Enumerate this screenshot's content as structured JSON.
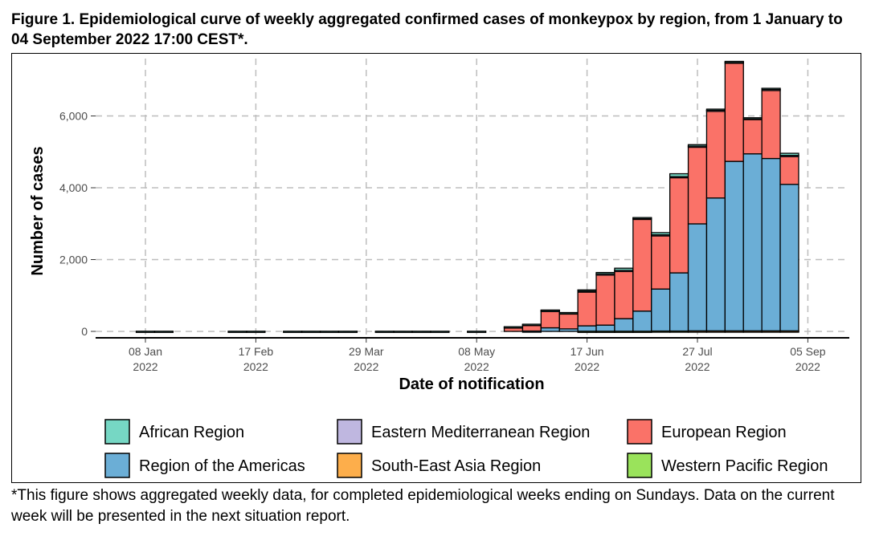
{
  "caption": "Figure 1. Epidemiological curve of weekly aggregated confirmed cases of monkeypox by region, from 1 January to 04 September 2022 17:00 CEST*.",
  "footnote": "*This figure shows aggregated weekly data, for completed epidemiological weeks ending on Sundays. Data on the current week will be presented in the next situation report.",
  "chart_data": {
    "type": "bar",
    "stacked": true,
    "xlabel": "Date of notification",
    "ylabel": "Number of cases",
    "ylim": [
      0,
      7500
    ],
    "yticks": [
      0,
      2000,
      4000,
      6000
    ],
    "ytick_labels": [
      "0",
      "2,000",
      "4,000",
      "6,000"
    ],
    "grid": true,
    "legend_position": "bottom",
    "x_tick_labels": [
      {
        "week": 0,
        "line1": "08 Jan",
        "line2": "2022"
      },
      {
        "week": 6,
        "line1": "17 Feb",
        "line2": "2022"
      },
      {
        "week": 12,
        "line1": "29 Mar",
        "line2": "2022"
      },
      {
        "week": 18,
        "line1": "08 May",
        "line2": "2022"
      },
      {
        "week": 24,
        "line1": "17 Jun",
        "line2": "2022"
      },
      {
        "week": 30,
        "line1": "27 Jul",
        "line2": "2022"
      },
      {
        "week": 36,
        "line1": "05 Sep",
        "line2": "2022"
      }
    ],
    "weeks": [
      "2022-01-02",
      "2022-01-09",
      "2022-01-16",
      "2022-01-23",
      "2022-01-30",
      "2022-02-06",
      "2022-02-13",
      "2022-02-20",
      "2022-02-27",
      "2022-03-06",
      "2022-03-13",
      "2022-03-20",
      "2022-03-27",
      "2022-04-03",
      "2022-04-10",
      "2022-04-17",
      "2022-04-24",
      "2022-05-01",
      "2022-05-08",
      "2022-05-15",
      "2022-05-22",
      "2022-05-29",
      "2022-06-05",
      "2022-06-12",
      "2022-06-19",
      "2022-06-26",
      "2022-07-03",
      "2022-07-10",
      "2022-07-17",
      "2022-07-24",
      "2022-07-31",
      "2022-08-07",
      "2022-08-14",
      "2022-08-21",
      "2022-08-28",
      "2022-09-04"
    ],
    "series": [
      {
        "name": "African Region",
        "color": "#76D7C4",
        "values": [
          5,
          5,
          0,
          0,
          0,
          5,
          5,
          0,
          5,
          5,
          5,
          5,
          0,
          5,
          5,
          5,
          5,
          0,
          5,
          0,
          5,
          5,
          10,
          10,
          30,
          40,
          60,
          20,
          60,
          80,
          40,
          30,
          20,
          20,
          30,
          60
        ]
      },
      {
        "name": "Eastern Mediterranean Region",
        "color": "#BFB7E0",
        "values": [
          0,
          0,
          0,
          0,
          0,
          0,
          0,
          0,
          0,
          0,
          0,
          0,
          0,
          0,
          0,
          0,
          0,
          0,
          0,
          0,
          5,
          5,
          5,
          5,
          10,
          5,
          5,
          5,
          10,
          10,
          5,
          5,
          5,
          5,
          5,
          5
        ]
      },
      {
        "name": "European Region",
        "color": "#FA7268",
        "values": [
          0,
          0,
          0,
          0,
          0,
          0,
          0,
          0,
          0,
          0,
          0,
          0,
          0,
          0,
          0,
          0,
          0,
          0,
          0,
          0,
          120,
          180,
          480,
          440,
          960,
          1420,
          1340,
          2580,
          1500,
          2670,
          2160,
          2440,
          2760,
          980,
          1920,
          800
        ]
      },
      {
        "name": "Region of the Americas",
        "color": "#6BAED6",
        "values": [
          0,
          0,
          0,
          0,
          0,
          0,
          0,
          0,
          0,
          0,
          0,
          0,
          0,
          0,
          0,
          0,
          0,
          0,
          0,
          0,
          0,
          10,
          100,
          70,
          150,
          170,
          350,
          560,
          1170,
          1620,
          2980,
          3700,
          4720,
          4930,
          4800,
          4080
        ]
      },
      {
        "name": "South-East Asia Region",
        "color": "#FDAE4B",
        "values": [
          0,
          0,
          0,
          0,
          0,
          0,
          0,
          0,
          0,
          0,
          0,
          0,
          0,
          0,
          0,
          0,
          0,
          0,
          0,
          0,
          0,
          0,
          0,
          0,
          0,
          0,
          0,
          0,
          0,
          0,
          5,
          5,
          5,
          5,
          5,
          5
        ]
      },
      {
        "name": "Western Pacific Region",
        "color": "#9AE35B",
        "values": [
          0,
          0,
          0,
          0,
          0,
          0,
          0,
          0,
          0,
          0,
          0,
          0,
          0,
          0,
          0,
          0,
          0,
          0,
          0,
          0,
          0,
          0,
          0,
          0,
          5,
          5,
          5,
          5,
          10,
          10,
          10,
          10,
          10,
          10,
          10,
          10
        ]
      }
    ]
  }
}
